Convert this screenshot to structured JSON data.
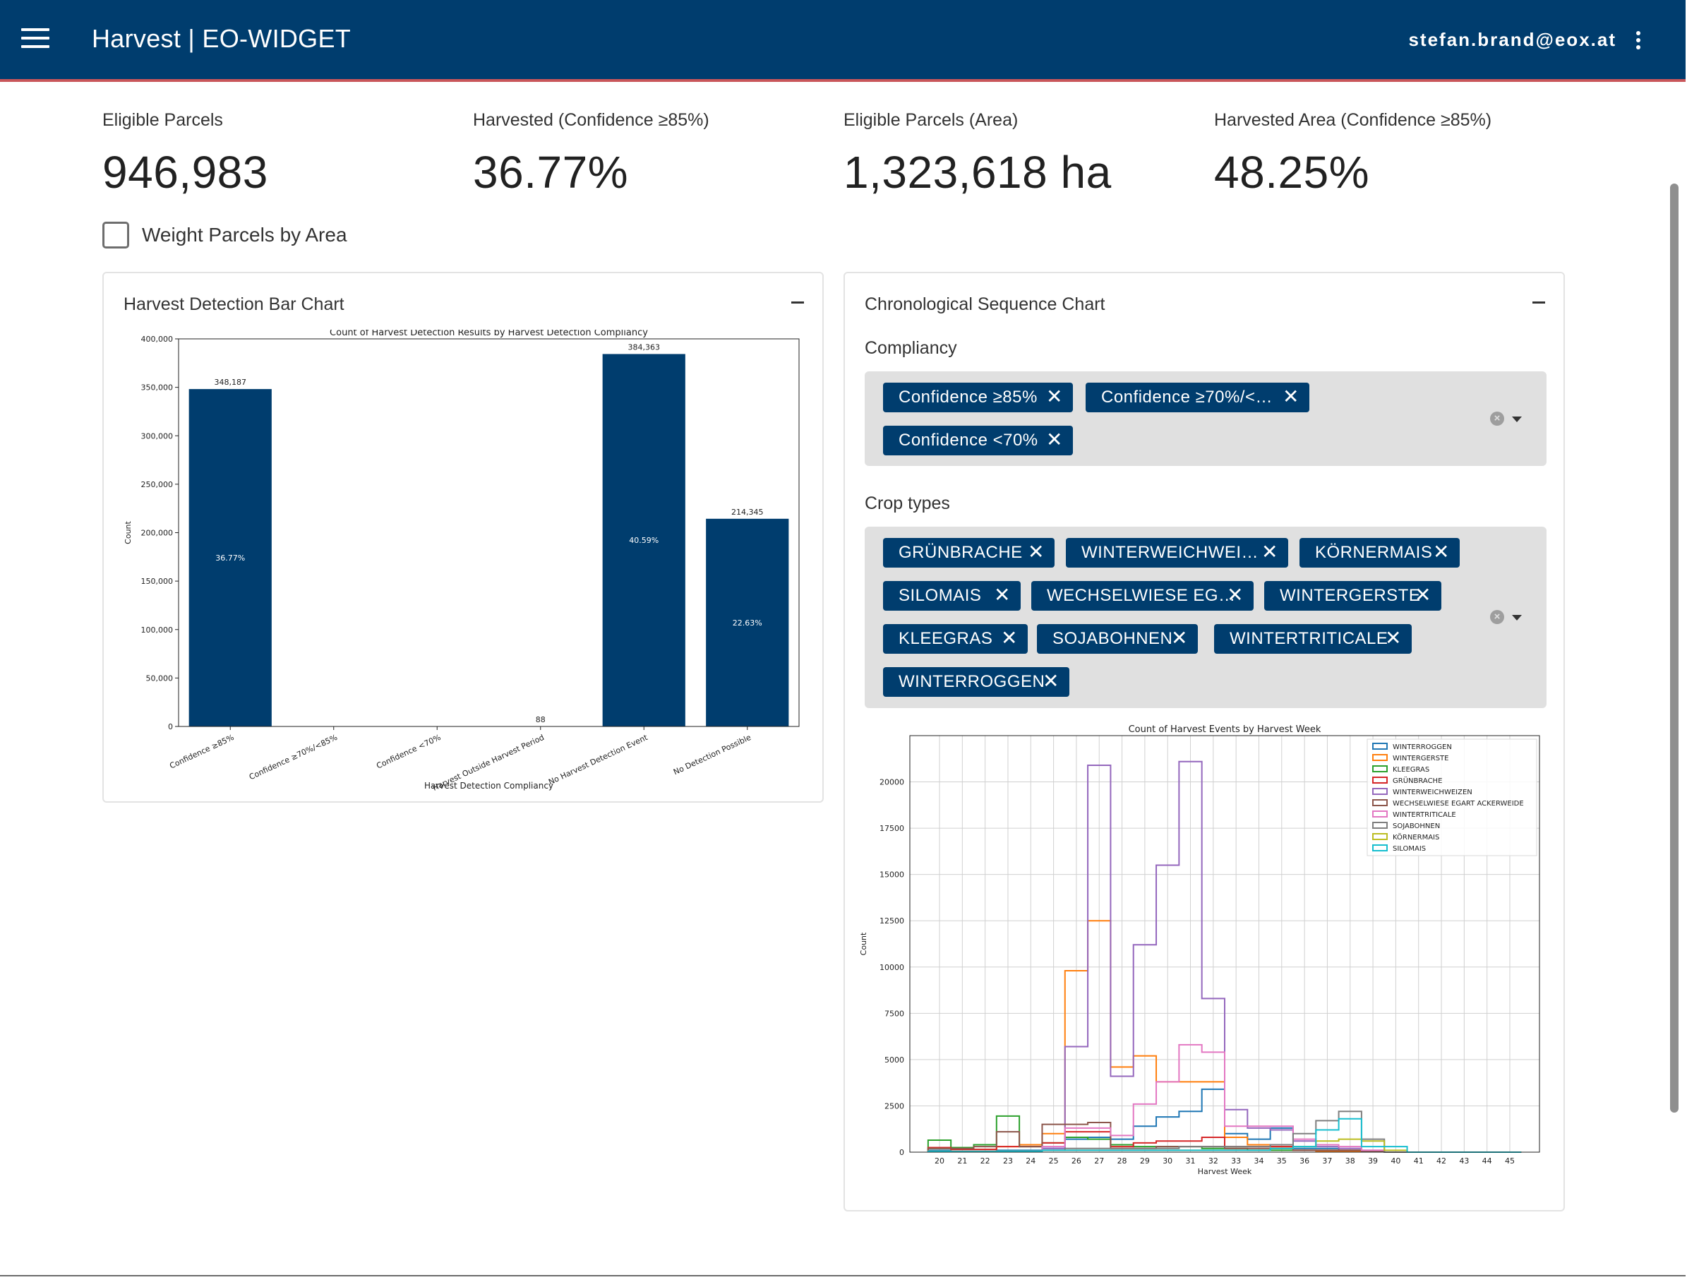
{
  "app": {
    "title": "Harvest | EO-WIDGET",
    "user_email": "stefan.brand@eox.at",
    "menu_icon": "menu-icon",
    "more_icon": "more-vert-icon",
    "primary_color": "#003d6e"
  },
  "kpis": [
    {
      "label": "Eligible Parcels",
      "value": "946,983"
    },
    {
      "label": "Harvested (Confidence ≥85%)",
      "value": "36.77%"
    },
    {
      "label": "Eligible Parcels (Area)",
      "value": "1,323,618 ha"
    },
    {
      "label": "Harvested Area (Confidence ≥85%)",
      "value": "48.25%"
    }
  ],
  "weight_checkbox": {
    "label": "Weight Parcels by Area",
    "checked": false
  },
  "bar_panel": {
    "title": "Harvest Detection Bar Chart"
  },
  "seq_panel": {
    "title": "Chronological Sequence Chart",
    "compliancy_label": "Compliancy",
    "compliancy_chips": [
      "Confidence ≥85%",
      "Confidence ≥70%/<…",
      "Confidence <70%"
    ],
    "crop_label": "Crop types",
    "crop_chips": [
      "GRÜNBRACHE",
      "WINTERWEICHWEI…",
      "KÖRNERMAIS",
      "SILOMAIS",
      "WECHSELWIESE EG…",
      "WINTERGERSTE",
      "KLEEGRAS",
      "SOJABOHNEN",
      "WINTERTRITICALE",
      "WINTERROGGEN"
    ]
  },
  "chart_data": [
    {
      "type": "bar",
      "title": "Count of Harvest Detection Results by Harvest Detection Compliancy",
      "xlabel": "Harvest Detection Compliancy",
      "ylabel": "Count",
      "ylim": [
        0,
        400000
      ],
      "yticks": [
        "0",
        "50,000",
        "100,000",
        "150,000",
        "200,000",
        "250,000",
        "300,000",
        "350,000",
        "400,000"
      ],
      "categories": [
        "Confidence ≥85%",
        "Confidence ≥70%/<85%",
        "Confidence <70%",
        "Harvest Outside Harvest Period",
        "No Harvest Detection Event",
        "No Detection Possible"
      ],
      "values": [
        348187,
        0,
        0,
        88,
        384363,
        214345
      ],
      "value_labels": [
        "348,187",
        "",
        "",
        "88",
        "384,363",
        "214,345"
      ],
      "percent_labels": [
        "36.77%",
        "",
        "",
        "",
        "40.59%",
        "22.63%"
      ],
      "color": "#003d6e",
      "grid": false
    },
    {
      "type": "line",
      "title": "Count of Harvest Events by Harvest Week",
      "xlabel": "Harvest Week",
      "ylabel": "Count",
      "x": [
        20,
        21,
        22,
        23,
        24,
        25,
        26,
        27,
        28,
        29,
        30,
        31,
        32,
        33,
        34,
        35,
        36,
        37,
        38,
        39,
        40,
        41,
        42,
        43,
        44,
        45
      ],
      "ylim": [
        0,
        22500
      ],
      "yticks": [
        "0",
        "2500",
        "5000",
        "7500",
        "10000",
        "12500",
        "15000",
        "17500",
        "20000"
      ],
      "grid": true,
      "legend": "top-right",
      "series": [
        {
          "name": "WINTERROGGEN",
          "color": "#1f77b4",
          "values": [
            100,
            50,
            50,
            100,
            100,
            200,
            700,
            800,
            700,
            1400,
            1900,
            2200,
            3400,
            1000,
            700,
            1300,
            200,
            200,
            100,
            50,
            0,
            0,
            0,
            0,
            0,
            0
          ]
        },
        {
          "name": "WINTERGERSTE",
          "color": "#ff7f0e",
          "values": [
            200,
            150,
            150,
            300,
            400,
            1000,
            9800,
            12500,
            4600,
            5200,
            3800,
            3800,
            3800,
            800,
            400,
            300,
            100,
            50,
            50,
            20,
            0,
            0,
            0,
            0,
            0,
            0
          ]
        },
        {
          "name": "KLEEGRAS",
          "color": "#2ca02c",
          "values": [
            650,
            250,
            400,
            1950,
            300,
            500,
            800,
            700,
            400,
            300,
            300,
            300,
            200,
            200,
            100,
            100,
            100,
            100,
            100,
            50,
            0,
            0,
            0,
            0,
            0,
            0
          ]
        },
        {
          "name": "GRÜNBRACHE",
          "color": "#d62728",
          "values": [
            250,
            150,
            150,
            300,
            300,
            500,
            1100,
            1100,
            300,
            500,
            600,
            600,
            800,
            300,
            300,
            300,
            100,
            100,
            100,
            50,
            0,
            0,
            0,
            0,
            0,
            0
          ]
        },
        {
          "name": "WINTERWEICHWEIZEN",
          "color": "#9467bd",
          "values": [
            50,
            30,
            30,
            50,
            50,
            200,
            5700,
            20900,
            4100,
            11200,
            15500,
            21100,
            8300,
            2300,
            1300,
            1200,
            600,
            300,
            200,
            100,
            0,
            0,
            0,
            0,
            0,
            0
          ]
        },
        {
          "name": "WECHSELWIESE EGART ACKERWEIDE",
          "color": "#8c564b",
          "values": [
            200,
            200,
            300,
            1100,
            300,
            1500,
            1500,
            1600,
            200,
            200,
            300,
            300,
            300,
            200,
            200,
            200,
            100,
            100,
            100,
            50,
            0,
            0,
            0,
            0,
            0,
            0
          ]
        },
        {
          "name": "WINTERTRITICALE",
          "color": "#e377c2",
          "values": [
            50,
            30,
            30,
            50,
            50,
            300,
            1300,
            1300,
            900,
            2600,
            3800,
            5800,
            5400,
            1400,
            1400,
            1400,
            700,
            400,
            300,
            100,
            0,
            0,
            0,
            0,
            0,
            0
          ]
        },
        {
          "name": "SOJABOHNEN",
          "color": "#7f7f7f",
          "values": [
            50,
            30,
            30,
            50,
            50,
            100,
            200,
            200,
            200,
            200,
            200,
            300,
            300,
            300,
            300,
            400,
            1000,
            1700,
            2200,
            700,
            0,
            0,
            0,
            0,
            0,
            0
          ]
        },
        {
          "name": "KÖRNERMAIS",
          "color": "#bcbd22",
          "values": [
            50,
            30,
            30,
            50,
            50,
            100,
            100,
            100,
            100,
            100,
            100,
            100,
            100,
            100,
            100,
            200,
            300,
            600,
            700,
            600,
            100,
            0,
            0,
            0,
            0,
            0
          ]
        },
        {
          "name": "SILOMAIS",
          "color": "#17becf",
          "values": [
            50,
            30,
            30,
            50,
            50,
            100,
            100,
            100,
            100,
            100,
            100,
            100,
            100,
            100,
            100,
            200,
            300,
            1200,
            1800,
            300,
            300,
            0,
            0,
            0,
            0,
            0
          ]
        }
      ]
    }
  ]
}
